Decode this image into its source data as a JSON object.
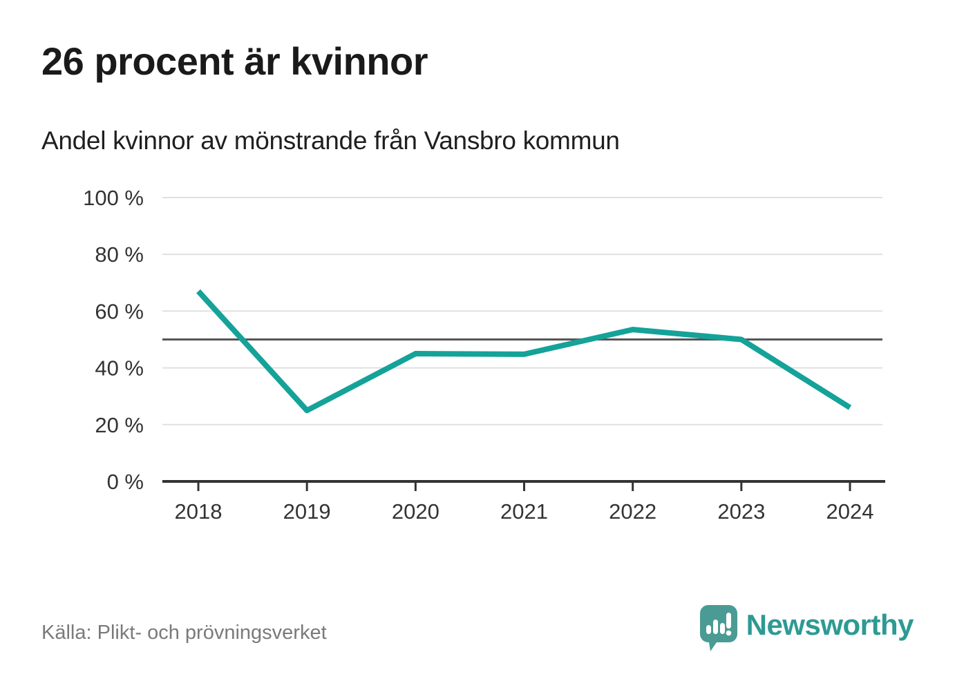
{
  "header": {
    "title": "26 procent är kvinnor",
    "subtitle": "Andel kvinnor av mönstrande från Vansbro kommun"
  },
  "footer": {
    "source": "Källa: Plikt- och prövningsverket",
    "brand": "Newsworthy"
  },
  "icons": {
    "logo": "newsworthy-speech-bubble-with-bar-chart-and-exclamation"
  },
  "chart_data": {
    "type": "line",
    "title": "26 procent är kvinnor",
    "subtitle": "Andel kvinnor av mönstrande från Vansbro kommun",
    "x": [
      "2018",
      "2019",
      "2020",
      "2021",
      "2022",
      "2023",
      "2024"
    ],
    "series": [
      {
        "name": "Andel kvinnor av mönstrande",
        "values": [
          67,
          25,
          45,
          44.8,
          53.5,
          50,
          26
        ]
      }
    ],
    "xlabel": "",
    "ylabel": "",
    "ylim": [
      0,
      100
    ],
    "yticks": [
      {
        "value": 0,
        "label": "0 %"
      },
      {
        "value": 20,
        "label": "20 %"
      },
      {
        "value": 40,
        "label": "40 %"
      },
      {
        "value": 60,
        "label": "60 %"
      },
      {
        "value": 80,
        "label": "80 %"
      },
      {
        "value": 100,
        "label": "100 %"
      }
    ],
    "reference_line": 50,
    "grid": true,
    "legend": "none",
    "colors": {
      "line": "#14a299",
      "grid": "#e0e0e0",
      "reference": "#555555",
      "axis": "#333333",
      "label": "#333333",
      "brand": "#2d9a93",
      "logo_bubble": "#4a9b94"
    }
  }
}
